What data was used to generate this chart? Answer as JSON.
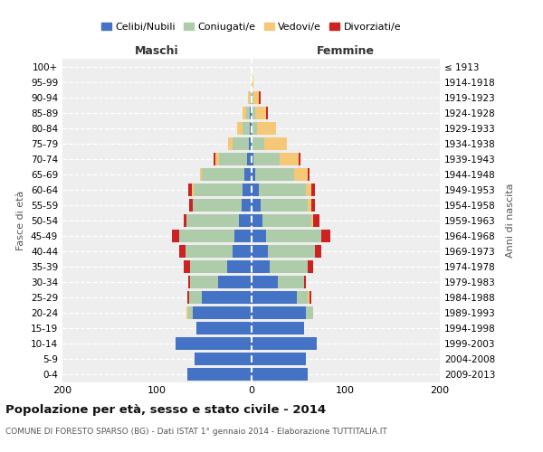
{
  "age_groups": [
    "0-4",
    "5-9",
    "10-14",
    "15-19",
    "20-24",
    "25-29",
    "30-34",
    "35-39",
    "40-44",
    "45-49",
    "50-54",
    "55-59",
    "60-64",
    "65-69",
    "70-74",
    "75-79",
    "80-84",
    "85-89",
    "90-94",
    "95-99",
    "100+"
  ],
  "birth_years": [
    "2009-2013",
    "2004-2008",
    "1999-2003",
    "1994-1998",
    "1989-1993",
    "1984-1988",
    "1979-1983",
    "1974-1978",
    "1969-1973",
    "1964-1968",
    "1959-1963",
    "1954-1958",
    "1949-1953",
    "1944-1948",
    "1939-1943",
    "1934-1938",
    "1929-1933",
    "1924-1928",
    "1919-1923",
    "1914-1918",
    "≤ 1913"
  ],
  "maschi": {
    "celibi": [
      68,
      60,
      80,
      58,
      62,
      52,
      35,
      25,
      20,
      18,
      13,
      10,
      9,
      7,
      4,
      2,
      1,
      1,
      0,
      0,
      0
    ],
    "coniugati": [
      0,
      0,
      0,
      0,
      5,
      14,
      30,
      40,
      50,
      58,
      56,
      52,
      52,
      45,
      30,
      18,
      8,
      4,
      1,
      0,
      0
    ],
    "vedovi": [
      0,
      0,
      0,
      0,
      2,
      0,
      0,
      0,
      0,
      0,
      0,
      0,
      2,
      2,
      4,
      4,
      6,
      4,
      2,
      0,
      0
    ],
    "divorziati": [
      0,
      0,
      0,
      0,
      0,
      2,
      2,
      6,
      6,
      8,
      2,
      4,
      4,
      0,
      2,
      0,
      0,
      0,
      0,
      0,
      0
    ]
  },
  "femmine": {
    "nubili": [
      60,
      58,
      70,
      56,
      58,
      48,
      28,
      20,
      18,
      16,
      12,
      10,
      8,
      4,
      2,
      0,
      0,
      0,
      0,
      0,
      0
    ],
    "coniugate": [
      0,
      0,
      0,
      0,
      8,
      12,
      28,
      40,
      50,
      58,
      52,
      50,
      50,
      42,
      28,
      14,
      6,
      4,
      2,
      0,
      0
    ],
    "vedove": [
      0,
      0,
      0,
      0,
      0,
      2,
      0,
      0,
      0,
      0,
      2,
      4,
      6,
      14,
      20,
      24,
      20,
      12,
      6,
      2,
      0
    ],
    "divorziate": [
      0,
      0,
      0,
      0,
      0,
      2,
      2,
      6,
      6,
      10,
      6,
      4,
      4,
      2,
      2,
      0,
      0,
      2,
      2,
      0,
      0
    ]
  },
  "colors": {
    "celibi_nubili": "#4472C4",
    "coniugati": "#AECCAA",
    "vedovi": "#F5C878",
    "divorziati": "#CC2222"
  },
  "xlim": 200,
  "title": "Popolazione per età, sesso e stato civile - 2014",
  "subtitle": "COMUNE DI FORESTO SPARSO (BG) - Dati ISTAT 1° gennaio 2014 - Elaborazione TUTTITALIA.IT",
  "ylabel": "Fasce di età",
  "ylabel_right": "Anni di nascita",
  "legend_labels": [
    "Celibi/Nubili",
    "Coniugati/e",
    "Vedovi/e",
    "Divorziati/e"
  ]
}
